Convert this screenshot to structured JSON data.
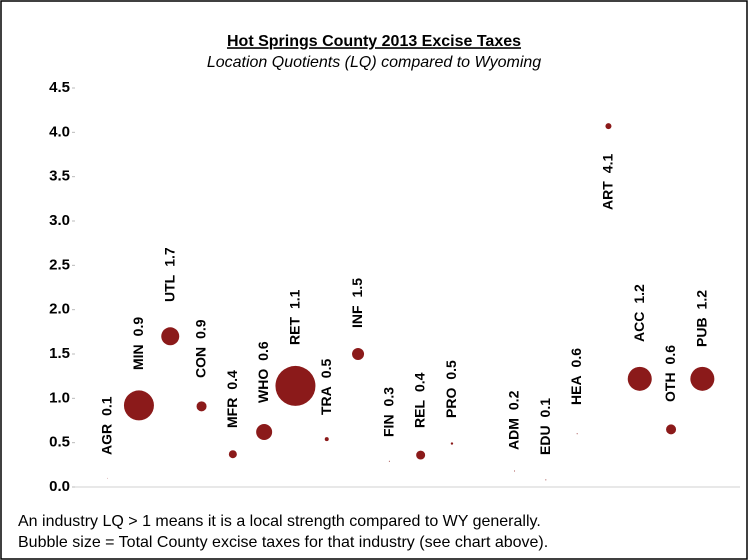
{
  "chart_data": {
    "type": "bubble",
    "title": "Hot Springs County 2013 Excise Taxes",
    "subtitle": "Location Quotients (LQ) compared to Wyoming",
    "categories": [
      "AGR",
      "MIN",
      "UTL",
      "CON",
      "MFR",
      "WHO",
      "RET",
      "TRA",
      "INF",
      "FIN",
      "REL",
      "PRO",
      null,
      "ADM",
      "EDU",
      "HEA",
      "ART",
      "ACC",
      "OTH",
      "PUB"
    ],
    "values": [
      0.1,
      0.92,
      1.7,
      0.91,
      0.37,
      0.62,
      1.14,
      0.54,
      1.5,
      0.29,
      0.36,
      0.49,
      null,
      0.18,
      0.08,
      0.6,
      4.07,
      1.22,
      0.65,
      1.22
    ],
    "value_labels": [
      "0.1",
      "0.9",
      "1.7",
      "0.9",
      "0.4",
      "0.6",
      "1.1",
      "0.5",
      "1.5",
      "0.3",
      "0.4",
      "0.5",
      null,
      "0.2",
      "0.1",
      "0.6",
      "4.1",
      "1.2",
      "0.6",
      "1.2"
    ],
    "sizes": [
      0.1,
      225,
      81,
      25,
      16,
      64,
      400,
      4,
      36,
      0.25,
      20,
      1.5,
      null,
      0.25,
      0.25,
      0.25,
      9,
      144,
      25,
      144
    ],
    "color": "#8b1a1a",
    "ylim": [
      0,
      4.5
    ],
    "yticks": [
      {
        "value": 0,
        "label": "0.0"
      },
      {
        "value": 0.5,
        "label": "0.5"
      },
      {
        "value": 1,
        "label": "1.0"
      },
      {
        "value": 1.5,
        "label": "1.5"
      },
      {
        "value": 2,
        "label": "2.0"
      },
      {
        "value": 2.5,
        "label": "2.5"
      },
      {
        "value": 3,
        "label": "3.0"
      },
      {
        "value": 3.5,
        "label": "3.5"
      },
      {
        "value": 4,
        "label": "4.0"
      },
      {
        "value": 4.5,
        "label": "4.5"
      }
    ],
    "notes": [
      "An industry LQ > 1 means it is a local strength compared to WY generally.",
      "Bubble size = Total County excise taxes for that industry (see chart above)."
    ]
  }
}
